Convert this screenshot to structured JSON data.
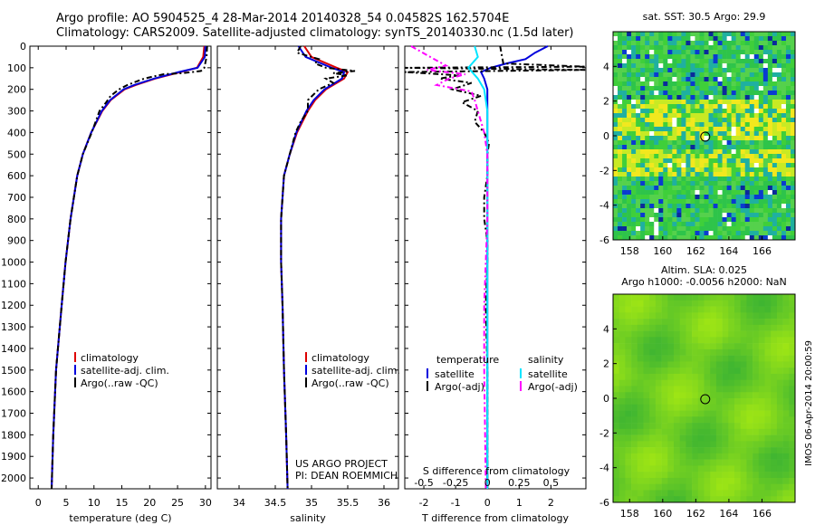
{
  "header": {
    "line1": "Argo profile: AO 5904525_4 28-Mar-2014 20140328_54 0.04582S 162.5704E",
    "line2": "Climatology: CARS2009. Satellite-adjusted climatology: synTS_20140330.nc (1.5d later)"
  },
  "depth_ticks": [
    0,
    100,
    200,
    300,
    400,
    500,
    600,
    700,
    800,
    900,
    1000,
    1100,
    1200,
    1300,
    1400,
    1500,
    1600,
    1700,
    1800,
    1900,
    2000
  ],
  "depth_range": [
    0,
    2050
  ],
  "timestamp": "IMOS 06-Apr-2014 20:00:59",
  "colors": {
    "climatology": "#dd0000",
    "satellite": "#0000dd",
    "argo": "#000000",
    "salinity_sat": "#00e5ff",
    "salinity_argo": "#ff00ff"
  },
  "chart_data": [
    {
      "type": "line",
      "xlabel": "temperature (deg C)",
      "xlim": [
        -1.5,
        31
      ],
      "xticks": [
        0,
        5,
        10,
        15,
        20,
        25,
        30
      ],
      "ylim": [
        0,
        2050
      ],
      "legend": [
        "climatology",
        "satellite-adj. clim.",
        "Argo(..raw -QC)"
      ],
      "legend_placement": "lower-center",
      "series": [
        {
          "name": "climatology",
          "color": "#dd0000",
          "depth": [
            0,
            50,
            100,
            120,
            150,
            180,
            200,
            250,
            300,
            400,
            500,
            600,
            800,
            1000,
            1200,
            1500,
            1800,
            2050
          ],
          "values": [
            29.8,
            29.6,
            28.5,
            25.5,
            21,
            17.5,
            15.5,
            13,
            11.5,
            9.5,
            8,
            7,
            5.8,
            4.9,
            4.2,
            3.2,
            2.7,
            2.4
          ]
        },
        {
          "name": "satellite-adj. clim.",
          "color": "#0000dd",
          "depth": [
            0,
            50,
            100,
            120,
            150,
            180,
            200,
            250,
            300,
            400,
            500,
            600,
            800,
            1000,
            1200,
            1500,
            1800,
            2050
          ],
          "values": [
            30,
            29.9,
            28.6,
            25.2,
            20.8,
            17.2,
            15.3,
            12.9,
            11.4,
            9.5,
            8,
            7,
            5.8,
            4.9,
            4.2,
            3.2,
            2.7,
            2.4
          ]
        },
        {
          "name": "Argo(..raw -QC)",
          "color": "#000000",
          "depth": [
            0,
            50,
            100,
            115,
            125,
            130,
            150,
            180,
            200,
            230,
            260,
            300,
            350,
            400,
            500,
            600,
            800,
            1000,
            1200,
            1500,
            1800,
            2050
          ],
          "values": [
            30.3,
            30.2,
            29.8,
            29.2,
            26,
            22.5,
            19,
            16,
            14.5,
            13,
            12.2,
            11,
            10.3,
            9.6,
            8,
            7,
            5.8,
            4.9,
            4.2,
            3.2,
            2.7,
            2.4
          ]
        }
      ]
    },
    {
      "type": "line",
      "xlabel": "salinity",
      "xlim": [
        33.7,
        36.2
      ],
      "xticks": [
        34,
        34.5,
        35,
        35.5,
        36
      ],
      "ylim": [
        0,
        2050
      ],
      "legend": [
        "climatology",
        "satellite-adj. clim.",
        "Argo(..raw -QC)"
      ],
      "legend_placement": "lower-center",
      "annotation": [
        "US ARGO PROJECT",
        "PI: DEAN ROEMMICH"
      ],
      "series": [
        {
          "name": "climatology",
          "color": "#dd0000",
          "depth": [
            0,
            50,
            100,
            120,
            150,
            200,
            250,
            300,
            400,
            500,
            600,
            800,
            1000,
            1200,
            1500,
            1800,
            2050
          ],
          "values": [
            34.9,
            35,
            35.35,
            35.5,
            35.45,
            35.2,
            35.05,
            34.95,
            34.8,
            34.7,
            34.62,
            34.58,
            34.58,
            34.6,
            34.62,
            34.65,
            34.67
          ]
        },
        {
          "name": "satellite-adj. clim.",
          "color": "#0000dd",
          "depth": [
            0,
            50,
            100,
            120,
            150,
            200,
            250,
            300,
            400,
            500,
            600,
            800,
            1000,
            1200,
            1500,
            1800,
            2050
          ],
          "values": [
            34.82,
            34.92,
            35.28,
            35.45,
            35.42,
            35.18,
            35.03,
            34.93,
            34.79,
            34.7,
            34.62,
            34.58,
            34.58,
            34.6,
            34.62,
            34.65,
            34.67
          ]
        },
        {
          "name": "Argo(..raw -QC)",
          "color": "#000000",
          "depth": [
            0,
            30,
            60,
            80,
            100,
            115,
            125,
            135,
            150,
            170,
            200,
            250,
            300,
            350,
            400,
            500,
            600,
            800,
            1000,
            1200,
            1500,
            1800,
            2050
          ],
          "values": [
            34.85,
            34.8,
            35.1,
            35.05,
            35.2,
            35.6,
            35.3,
            35.5,
            35.2,
            35.3,
            35.1,
            34.95,
            34.95,
            34.85,
            34.78,
            34.7,
            34.62,
            34.58,
            34.58,
            34.6,
            34.62,
            34.65,
            34.67
          ]
        }
      ]
    },
    {
      "type": "line",
      "xlabel": "T difference from climatology",
      "xlabel_top": "S difference from climatology",
      "xlim": [
        -2.6,
        3.1
      ],
      "xticks": [
        -2,
        -1,
        0,
        1,
        2
      ],
      "xticks_top_labels": [
        "-0.5",
        "-0.25",
        "0",
        "0.25",
        "0.5"
      ],
      "xticks_top_pos": [
        -2,
        -1,
        0,
        1,
        2
      ],
      "ylim": [
        0,
        2050
      ],
      "legend_left_title": "temperature",
      "legend_right_title": "salinity",
      "legend": [
        "satellite",
        "Argo(-adj)",
        "satellite",
        "Argo(-adj)"
      ],
      "series": [
        {
          "name": "satellite",
          "color": "#0000dd",
          "depth": [
            0,
            30,
            60,
            80,
            100,
            120,
            150,
            200,
            300,
            500,
            800,
            1200,
            2050
          ],
          "values": [
            1.9,
            1.5,
            1.2,
            0.6,
            0.1,
            -0.2,
            -0.1,
            0,
            0,
            0,
            0,
            0,
            0
          ]
        },
        {
          "name": "Argo(-adj)",
          "color": "#000000",
          "depth": [
            0,
            80,
            95,
            100,
            110,
            120,
            135,
            150,
            170,
            200,
            230,
            260,
            300,
            350,
            400,
            450,
            500,
            600,
            700,
            800,
            900,
            1000,
            1200,
            1500,
            1800,
            2050
          ],
          "values": [
            0.4,
            0.5,
            3.1,
            -2.6,
            3.1,
            -2.6,
            -0.9,
            -1.5,
            -0.5,
            -1.1,
            -0.2,
            -0.8,
            -0.3,
            -0.4,
            -0.1,
            0.05,
            0,
            0,
            -0.1,
            -0.1,
            0,
            0,
            -0.05,
            0,
            0,
            0
          ]
        },
        {
          "name": "satellite",
          "color": "#00e5ff",
          "depth": [
            0,
            50,
            100,
            150,
            200,
            300,
            500,
            800,
            1200,
            2050
          ],
          "values": [
            -0.4,
            -0.3,
            -0.6,
            -0.3,
            -0.1,
            0,
            0,
            0,
            0,
            0
          ]
        },
        {
          "name": "Argo(-adj)",
          "color": "#ff00ff",
          "depth": [
            0,
            50,
            90,
            110,
            130,
            150,
            180,
            210,
            250,
            300,
            350,
            400,
            500,
            800,
            1200,
            1500,
            2050
          ],
          "values": [
            -2.4,
            -1.8,
            -1.3,
            -1.9,
            -0.7,
            -1.2,
            -1.6,
            -0.5,
            -0.4,
            -0.3,
            -0.2,
            -0.1,
            0,
            0,
            -0.1,
            -0.1,
            -0.05
          ]
        }
      ]
    },
    {
      "type": "heatmap",
      "title": "sat. SST: 30.5  Argo: 29.9",
      "xlim": [
        157,
        168
      ],
      "ylim": [
        -6,
        6
      ],
      "xticks": [
        158,
        160,
        162,
        164,
        166
      ],
      "yticks": [
        -6,
        -4,
        -2,
        0,
        2,
        4
      ],
      "marker": {
        "lon": 162.57,
        "lat": -0.05
      }
    },
    {
      "type": "heatmap",
      "title": "Altim. SLA: 0.025",
      "subtitle": "Argo h1000: -0.0056 h2000: NaN",
      "xlim": [
        157,
        168
      ],
      "ylim": [
        -6,
        6
      ],
      "xticks": [
        158,
        160,
        162,
        164,
        166
      ],
      "yticks": [
        -6,
        -4,
        -2,
        0,
        2,
        4
      ],
      "marker": {
        "lon": 162.57,
        "lat": -0.05
      }
    }
  ]
}
